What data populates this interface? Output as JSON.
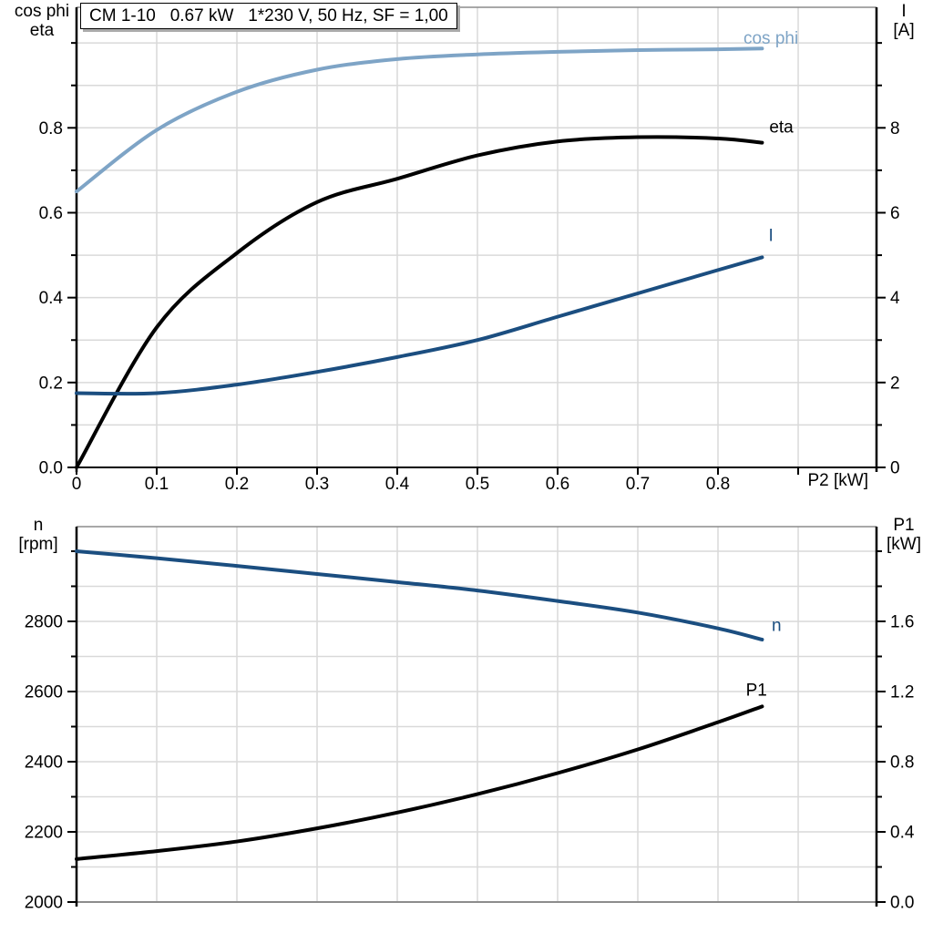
{
  "colors": {
    "light_blue": "#7EA4C6",
    "dark_blue": "#1B4E80",
    "black": "#000000",
    "grid": "#D9D9D9",
    "border": "#8C8C8C",
    "axis": "#000000"
  },
  "chart_data": [
    {
      "type": "line",
      "title": "CM 1-10   0.67 kW   1*230 V, 50 Hz, SF = 1,00",
      "xlabel": "P2 [kW]",
      "x": [
        0,
        0.1,
        0.2,
        0.3,
        0.4,
        0.5,
        0.6,
        0.7,
        0.8,
        0.855
      ],
      "xlim": [
        0,
        0.9977
      ],
      "x_ticks": {
        "values": [
          0,
          0.1,
          0.2,
          0.3,
          0.4,
          0.5,
          0.6,
          0.7,
          0.8,
          0.9
        ],
        "labels": [
          "0",
          "0.1",
          "0.2",
          "0.3",
          "0.4",
          "0.5",
          "0.6",
          "0.7",
          "0.8",
          ""
        ]
      },
      "grid": {
        "x_step": 0.1,
        "y_step": 0.1
      },
      "left_axis": {
        "title_lines": [
          "cos phi",
          "eta"
        ],
        "lim": [
          0,
          1.084
        ],
        "tick_values": [
          0,
          0.2,
          0.4,
          0.6,
          0.8
        ],
        "tick_labels": [
          "0.0",
          "0.2",
          "0.4",
          "0.6",
          "0.8"
        ],
        "minor_step": 0.1
      },
      "right_axis": {
        "title_lines": [
          "I",
          "[A]"
        ],
        "lim": [
          0,
          10.84
        ],
        "tick_values": [
          0,
          2,
          4,
          6,
          8
        ],
        "tick_labels": [
          "0",
          "2",
          "4",
          "6",
          "8"
        ],
        "minor_step": 1
      },
      "series": [
        {
          "name": "cos phi",
          "axis": "left",
          "color": "light_blue",
          "label": {
            "x": 0.866,
            "y": 1.012
          },
          "values": [
            0.65,
            0.795,
            0.885,
            0.937,
            0.962,
            0.973,
            0.979,
            0.983,
            0.985,
            0.987
          ]
        },
        {
          "name": "eta",
          "axis": "left",
          "color": "black",
          "label": {
            "x": 0.879,
            "y": 0.803
          },
          "values": [
            0,
            0.33,
            0.505,
            0.625,
            0.68,
            0.735,
            0.768,
            0.778,
            0.775,
            0.765
          ]
        },
        {
          "name": "I",
          "axis": "right",
          "color": "dark_blue",
          "label": {
            "x": 0.866,
            "y": 5.47
          },
          "values": [
            1.75,
            1.75,
            1.95,
            2.25,
            2.6,
            3.0,
            3.55,
            4.1,
            4.65,
            4.95
          ]
        }
      ]
    },
    {
      "type": "line",
      "title": "",
      "xlabel": "",
      "x": [
        0,
        0.1,
        0.2,
        0.3,
        0.4,
        0.5,
        0.6,
        0.7,
        0.8,
        0.855
      ],
      "xlim": [
        0,
        0.9977
      ],
      "x_ticks": {
        "values": [],
        "labels": []
      },
      "grid": {
        "x_step": 0.1,
        "y_step": 100
      },
      "left_axis": {
        "title_lines": [
          "n",
          "[rpm]"
        ],
        "lim": [
          2000,
          3070
        ],
        "tick_values": [
          2000,
          2200,
          2400,
          2600,
          2800
        ],
        "tick_labels": [
          "2000",
          "2200",
          "2400",
          "2600",
          "2800"
        ],
        "minor_step": 100
      },
      "right_axis": {
        "title_lines": [
          "P1",
          "[kW]"
        ],
        "lim": [
          0,
          2.14
        ],
        "tick_values": [
          0,
          0.4,
          0.8,
          1.2,
          1.6
        ],
        "tick_labels": [
          "0.0",
          "0.4",
          "0.8",
          "1.2",
          "1.6"
        ],
        "minor_step": 0.2
      },
      "series": [
        {
          "name": "n",
          "axis": "left",
          "color": "dark_blue",
          "label": {
            "x": 0.873,
            "y": 2790
          },
          "values": [
            3000,
            2980,
            2958,
            2935,
            2912,
            2888,
            2858,
            2825,
            2780,
            2748
          ]
        },
        {
          "name": "P1",
          "axis": "right",
          "color": "black",
          "label": {
            "x": 0.848,
            "y": 1.21
          },
          "values": [
            0.245,
            0.29,
            0.345,
            0.42,
            0.51,
            0.615,
            0.735,
            0.87,
            1.025,
            1.115
          ]
        }
      ]
    }
  ]
}
